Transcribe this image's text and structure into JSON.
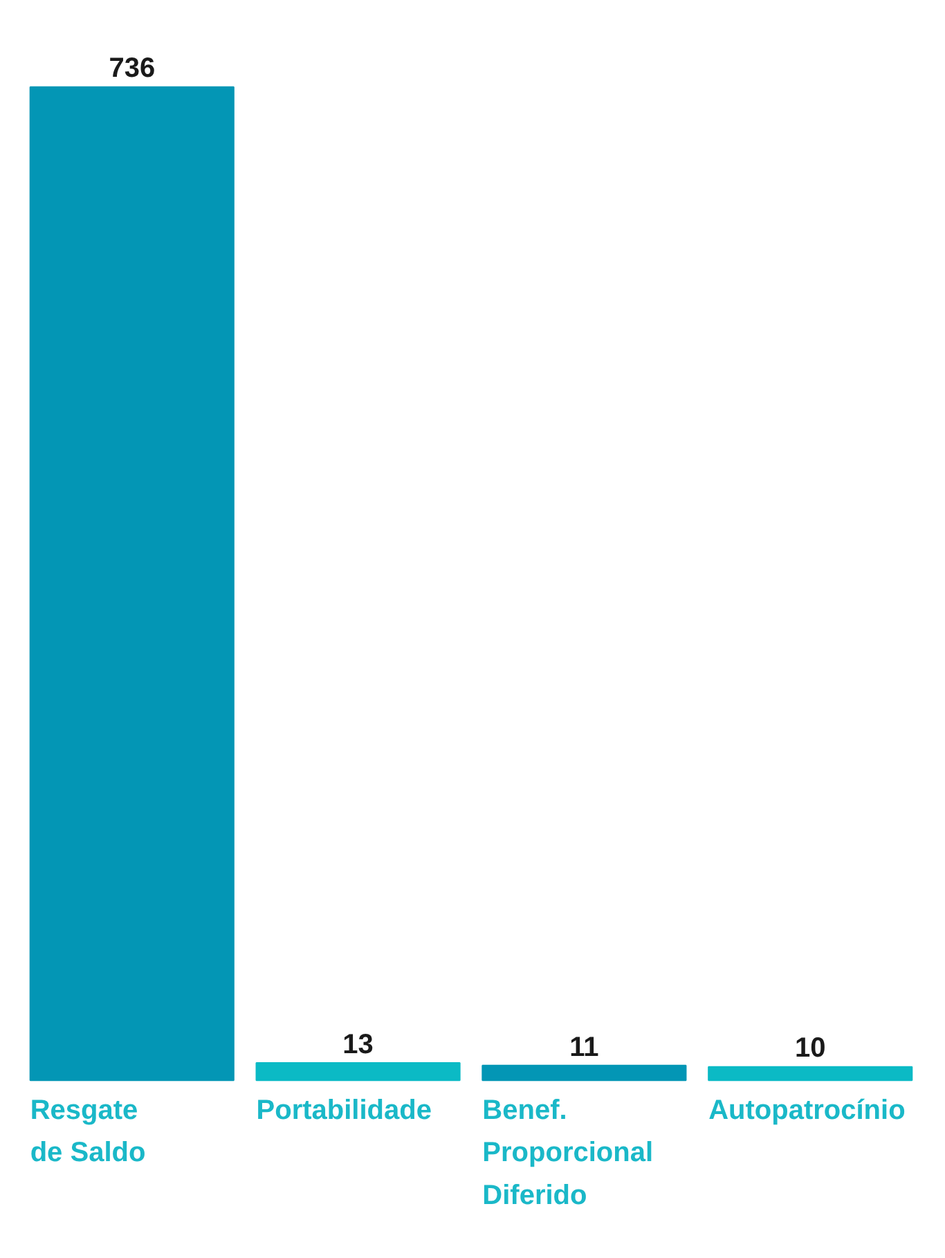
{
  "chart_data": {
    "type": "bar",
    "categories": [
      "Resgate de Saldo",
      "Portabilidade",
      "Benef. Proporcional Diferido",
      "Autopatrocínio"
    ],
    "values": [
      736,
      13,
      11,
      10
    ],
    "colors": [
      "#0396b5",
      "#0bbac5",
      "#0396b5",
      "#0bbac5"
    ],
    "data_labels": true
  }
}
